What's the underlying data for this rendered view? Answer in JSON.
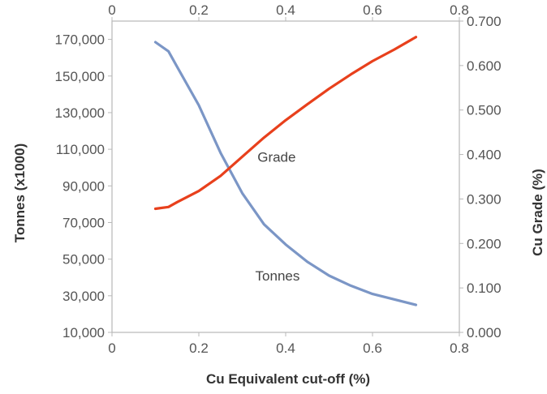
{
  "chart_data": {
    "type": "line",
    "xlabel": "Cu Equivalent cut-off (%)",
    "ylabel": "Tonnes (x1000)",
    "y2label": "Cu Grade (%)",
    "xlim": [
      0,
      0.8
    ],
    "ylim": [
      10000,
      180000
    ],
    "y2lim": [
      0,
      0.7
    ],
    "x_ticks": [
      "0",
      "0.2",
      "0.4",
      "0.6",
      "0.8"
    ],
    "y_ticks": [
      "10,000",
      "30,000",
      "50,000",
      "70,000",
      "90,000",
      "110,000",
      "130,000",
      "150,000",
      "170,000"
    ],
    "y2_ticks": [
      "0.000",
      "0.100",
      "0.200",
      "0.300",
      "0.400",
      "0.500",
      "0.600",
      "0.700"
    ],
    "grid": false,
    "series": [
      {
        "name": "Tonnes",
        "axis": "left",
        "color": "#7b96c6",
        "x": [
          0.1,
          0.13,
          0.15,
          0.2,
          0.25,
          0.3,
          0.35,
          0.4,
          0.45,
          0.5,
          0.55,
          0.6,
          0.65,
          0.7
        ],
        "y": [
          168500,
          163500,
          155000,
          134000,
          108000,
          86000,
          69000,
          58000,
          48500,
          41000,
          35500,
          31000,
          28000,
          25000
        ]
      },
      {
        "name": "Grade",
        "axis": "right",
        "color": "#e8401c",
        "x": [
          0.1,
          0.13,
          0.15,
          0.2,
          0.25,
          0.3,
          0.35,
          0.4,
          0.45,
          0.5,
          0.55,
          0.6,
          0.65,
          0.7
        ],
        "y": [
          0.278,
          0.282,
          0.293,
          0.318,
          0.352,
          0.395,
          0.438,
          0.477,
          0.513,
          0.548,
          0.58,
          0.61,
          0.636,
          0.664
        ]
      }
    ],
    "annotations": [
      {
        "text": "Grade",
        "series": "Grade"
      },
      {
        "text": "Tonnes",
        "series": "Tonnes"
      }
    ]
  }
}
